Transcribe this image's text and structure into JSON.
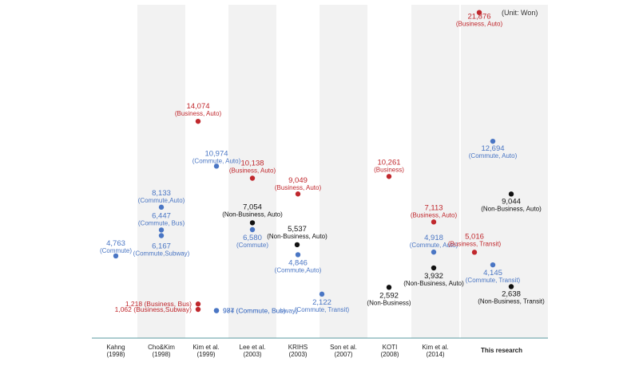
{
  "chart_data": {
    "type": "scatter",
    "title": "",
    "unit_label": "(Unit: Won)",
    "xlabel": "",
    "ylabel": "",
    "ylim": [
      0,
      22500
    ],
    "grid": false,
    "categories": [
      {
        "name": "Kahng",
        "year": "(1998)"
      },
      {
        "name": "Cho&Kim",
        "year": "(1998)"
      },
      {
        "name": "Kim et al.",
        "year": "(1999)"
      },
      {
        "name": "Lee et al.",
        "year": "(2003)"
      },
      {
        "name": "KRIHS",
        "year": "(2003)"
      },
      {
        "name": "Son et al.",
        "year": "(2007)"
      },
      {
        "name": "KOTI",
        "year": "(2008)"
      },
      {
        "name": "Kim et al.",
        "year": "(2014)"
      },
      {
        "name": "This research",
        "year": ""
      }
    ],
    "colors": {
      "commute": "#4a76c4",
      "business": "#c0282d",
      "non_business": "#111111",
      "band": "#f2f2f2",
      "axis": "#5a9aa0"
    },
    "points": [
      {
        "cat": 0,
        "value": 4763,
        "value_label": "4,763",
        "desc": "(Commute)",
        "group": "commute"
      },
      {
        "cat": 1,
        "value": 8133,
        "value_label": "8,133",
        "desc": "(Commute,Auto)",
        "group": "commute"
      },
      {
        "cat": 1,
        "value": 6447,
        "value_label": "6,447",
        "desc": "(Commute, Bus)",
        "group": "commute"
      },
      {
        "cat": 1,
        "value": 6167,
        "value_label": "6,167",
        "desc": "(Commute,Subway)",
        "group": "commute"
      },
      {
        "cat": 2,
        "value": 14074,
        "value_label": "14,074",
        "desc": "(Business, Auto)",
        "group": "business"
      },
      {
        "cat": 2,
        "value": 1218,
        "value_label": "1,218",
        "desc": "(Business, Bus)",
        "group": "business"
      },
      {
        "cat": 2,
        "value": 1062,
        "value_label": "1,062",
        "desc": "(Business,Subway)",
        "group": "business"
      },
      {
        "cat": 2,
        "value": 10974,
        "value_label": "10,974",
        "desc": "(Commute, Auto)",
        "group": "commute"
      },
      {
        "cat": 2,
        "value": 987,
        "value_label": "987",
        "desc": "(Commute, Bus)",
        "group": "commute"
      },
      {
        "cat": 2,
        "value": 974,
        "value_label": "974",
        "desc": "(Commute, Subway)",
        "group": "commute"
      },
      {
        "cat": 3,
        "value": 10138,
        "value_label": "10,138",
        "desc": "(Business, Auto)",
        "group": "business"
      },
      {
        "cat": 3,
        "value": 7054,
        "value_label": "7,054",
        "desc": "(Non-Business, Auto)",
        "group": "non_business"
      },
      {
        "cat": 3,
        "value": 6580,
        "value_label": "6,580",
        "desc": "(Commute)",
        "group": "commute"
      },
      {
        "cat": 4,
        "value": 9049,
        "value_label": "9,049",
        "desc": "(Business, Auto)",
        "group": "business"
      },
      {
        "cat": 4,
        "value": 5537,
        "value_label": "5,537",
        "desc": "(Non-Business, Auto)",
        "group": "non_business"
      },
      {
        "cat": 4,
        "value": 4846,
        "value_label": "4,846",
        "desc": "(Commute,Auto)",
        "group": "commute"
      },
      {
        "cat": 5,
        "value": 2122,
        "value_label": "2,122",
        "desc": "(Commute, Transit)",
        "group": "commute"
      },
      {
        "cat": 6,
        "value": 10261,
        "value_label": "10,261",
        "desc": "(Business)",
        "group": "business"
      },
      {
        "cat": 6,
        "value": 2592,
        "value_label": "2,592",
        "desc": "(Non-Business)",
        "group": "non_business"
      },
      {
        "cat": 7,
        "value": 7113,
        "value_label": "7,113",
        "desc": "(Business, Auto)",
        "group": "business"
      },
      {
        "cat": 7,
        "value": 4918,
        "value_label": "4,918",
        "desc": "(Commute, Auto)",
        "group": "commute"
      },
      {
        "cat": 7,
        "value": 3932,
        "value_label": "3,932",
        "desc": "(Non-Business, Auto)",
        "group": "non_business"
      },
      {
        "cat": 8,
        "value": 21876,
        "value_label": "21,876",
        "desc": "(Business, Auto)",
        "group": "business"
      },
      {
        "cat": 8,
        "value": 12694,
        "value_label": "12,694",
        "desc": "(Commute, Auto)",
        "group": "commute"
      },
      {
        "cat": 8,
        "value": 9044,
        "value_label": "9,044",
        "desc": "(Non-Business, Auto)",
        "group": "non_business"
      },
      {
        "cat": 8,
        "value": 5016,
        "value_label": "5,016",
        "desc": "(Business, Transit)",
        "group": "business"
      },
      {
        "cat": 8,
        "value": 4145,
        "value_label": "4,145",
        "desc": "(Commute, Transit)",
        "group": "commute"
      },
      {
        "cat": 8,
        "value": 2638,
        "value_label": "2,638",
        "desc": "(Non-Business, Transit)",
        "group": "non_business"
      }
    ]
  }
}
